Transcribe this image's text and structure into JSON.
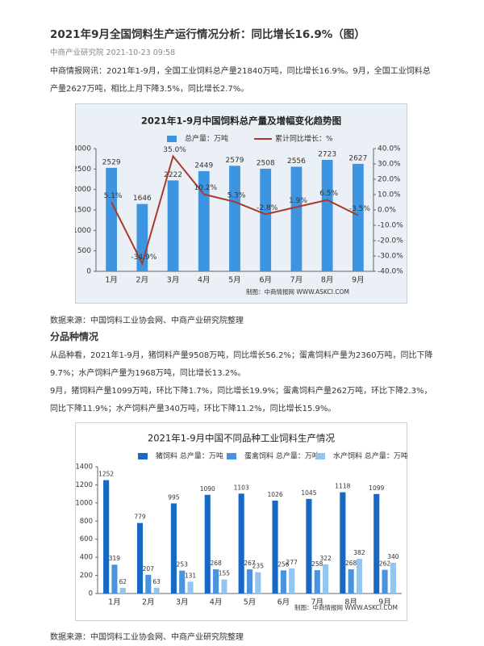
{
  "header": {
    "title": "2021年9月全国饲料生产运行情况分析：同比增长16.9%（图）",
    "meta": "中商产业研究院 2021-10-23 09:58"
  },
  "intro": "中商情报网讯：2021年1-9月，全国工业饲料总产量21840万吨，同比增长16.9%。9月，全国工业饲料总产量2627万吨，相比上月下降3.5%，同比增长2.7%。",
  "source_1": "数据来源：中国饲料工业协会网、中商产业研究院整理",
  "section_heading": "分品种情况",
  "paragraphs": [
    "从品种看，2021年1-9月，猪饲料产量9508万吨，同比增长56.2%；蛋禽饲料产量为2360万吨，同比下降9.7%；水产饲料产量为1968万吨，同比增长13.2%。",
    "9月，猪饲料产量1099万吨，环比下降1.7%，同比增长19.9%；蛋禽饲料产量262万吨，环比下降2.3%，同比下降11.9%；水产饲料产量340万吨，环比下降11.2%，同比增长15.9%。"
  ],
  "source_2": "数据来源：中国饲料工业协会网、中商产业研究院整理",
  "chart_data": [
    {
      "type": "combo",
      "title": "2021年1-9月中国饲料总产量及增幅变化趋势图",
      "categories": [
        "1月",
        "2月",
        "3月",
        "4月",
        "5月",
        "6月",
        "7月",
        "8月",
        "9月"
      ],
      "series": [
        {
          "name": "总产量：万吨",
          "type": "bar",
          "color": "#3d94e0",
          "values": [
            2529,
            1646,
            2222,
            2449,
            2579,
            2508,
            2556,
            2723,
            2627
          ]
        },
        {
          "name": "累计同比增长：%",
          "type": "line",
          "axis": "y2",
          "color": "#a93a2a",
          "values": [
            5.1,
            -34.9,
            35.0,
            10.2,
            5.3,
            -2.8,
            1.9,
            6.5,
            -3.5
          ],
          "value_labels": [
            "5.1%",
            "-34.9%",
            "35.0%",
            "10.2%",
            "5.3%",
            "-2.8%",
            "1.9%",
            "6.5%",
            "-3.5%"
          ]
        }
      ],
      "ylim": [
        0,
        3000
      ],
      "yticks": [
        0,
        500,
        1000,
        1500,
        2000,
        2500,
        3000
      ],
      "y2lim": [
        -40,
        40
      ],
      "y2ticks": [
        {
          "value": -40,
          "label": "-40.0%"
        },
        {
          "value": -30,
          "label": "-30.0%"
        },
        {
          "value": -20,
          "label": "-20.0%"
        },
        {
          "value": -10,
          "label": "-10.0%"
        },
        {
          "value": 0,
          "label": "0.0%"
        },
        {
          "value": 10,
          "label": "10.0%"
        },
        {
          "value": 20,
          "label": "20.0%"
        },
        {
          "value": 30,
          "label": "30.0%"
        },
        {
          "value": 40,
          "label": "40.0%"
        }
      ],
      "note": "制图：中商情报网 WWW.ASKCI.COM"
    },
    {
      "type": "bar",
      "title": "2021年1-9月中国不同品种工业饲料生产情况",
      "categories": [
        "1月",
        "2月",
        "3月",
        "4月",
        "5月",
        "6月",
        "7月",
        "8月",
        "9月"
      ],
      "series": [
        {
          "name": "猪饲料 总产量：万吨",
          "color": "#1769c4",
          "values": [
            1252,
            779,
            995,
            1090,
            1103,
            1026,
            1045,
            1118,
            1099
          ]
        },
        {
          "name": "蛋禽饲料 总产量：万吨",
          "color": "#4b93dc",
          "values": [
            319,
            207,
            253,
            268,
            267,
            256,
            258,
            268,
            262
          ]
        },
        {
          "name": "水产饲料 总产量：万吨",
          "color": "#93c5ee",
          "values": [
            62,
            63,
            131,
            155,
            235,
            277,
            322,
            382,
            340
          ]
        }
      ],
      "ylim": [
        0,
        1400
      ],
      "yticks": [
        0,
        200,
        400,
        600,
        800,
        1000,
        1200,
        1400
      ],
      "note": "制图：中商情报网 WWW.ASKCI.COM"
    }
  ]
}
